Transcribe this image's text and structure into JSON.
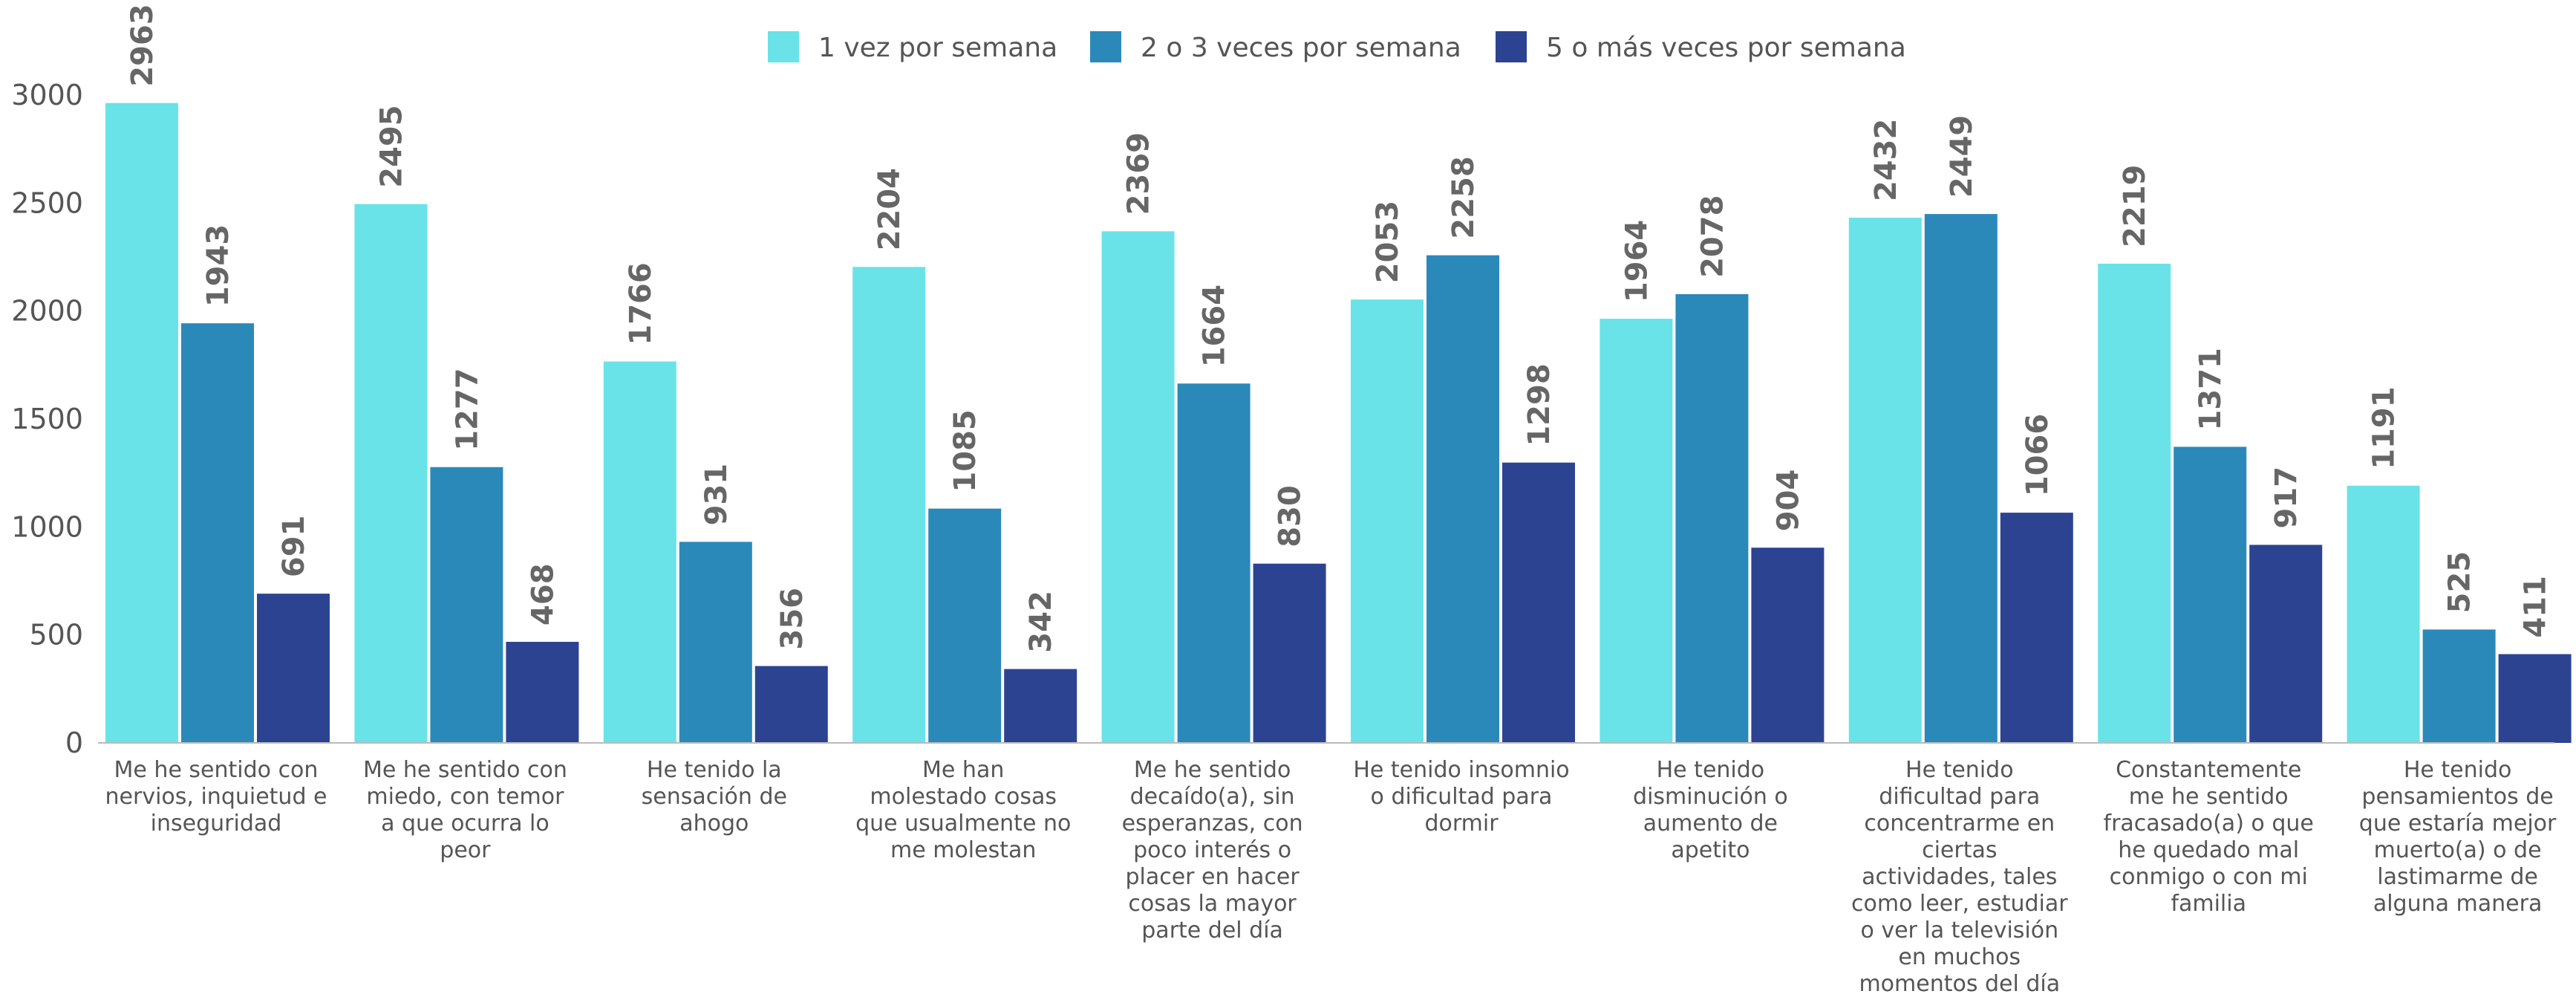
{
  "chart_data": {
    "type": "bar",
    "title": "",
    "xlabel": "",
    "ylabel": "",
    "ylim": [
      0,
      3000
    ],
    "yticks": [
      0,
      500,
      1000,
      1500,
      2000,
      2500,
      3000
    ],
    "grid": false,
    "legend": "top-center",
    "categories": [
      [
        "Me he sentido con",
        "nervios, inquietud e",
        "inseguridad"
      ],
      [
        "Me he sentido con",
        "miedo, con temor",
        "a que ocurra lo",
        "peor"
      ],
      [
        "He tenido la",
        "sensación de",
        "ahogo"
      ],
      [
        "Me han",
        "molestado cosas",
        "que usualmente no",
        "me molestan"
      ],
      [
        "Me he sentido",
        "decaído(a), sin",
        "esperanzas, con",
        "poco interés o",
        "placer en hacer",
        "cosas la mayor",
        "parte del día"
      ],
      [
        "He tenido insomnio",
        "o dificultad para",
        "dormir"
      ],
      [
        "He tenido",
        "disminución o",
        "aumento de",
        "apetito"
      ],
      [
        "He tenido",
        "dificultad para",
        "concentrarme en",
        "ciertas",
        "actividades, tales",
        "como leer, estudiar",
        "o ver la televisión",
        "en muchos",
        "momentos del día"
      ],
      [
        "Constantemente",
        "me he sentido",
        "fracasado(a) o que",
        "he quedado mal",
        "conmigo o con mi",
        "familia"
      ],
      [
        "He tenido",
        "pensamientos de",
        "que estaría mejor",
        "muerto(a) o de",
        "lastimarme de",
        "alguna manera"
      ]
    ],
    "series": [
      {
        "name": "1 vez por semana",
        "color": "#69E3E8",
        "values": [
          2963,
          2495,
          1766,
          2204,
          2369,
          2053,
          1964,
          2432,
          2219,
          1191
        ]
      },
      {
        "name": "2 o 3 veces por semana",
        "color": "#2B89BA",
        "values": [
          1943,
          1277,
          931,
          1085,
          1664,
          2258,
          2078,
          2449,
          1371,
          525
        ]
      },
      {
        "name": "5 o más veces por semana",
        "color": "#2C4391",
        "values": [
          691,
          468,
          356,
          342,
          830,
          1298,
          904,
          1066,
          917,
          411
        ]
      }
    ]
  }
}
